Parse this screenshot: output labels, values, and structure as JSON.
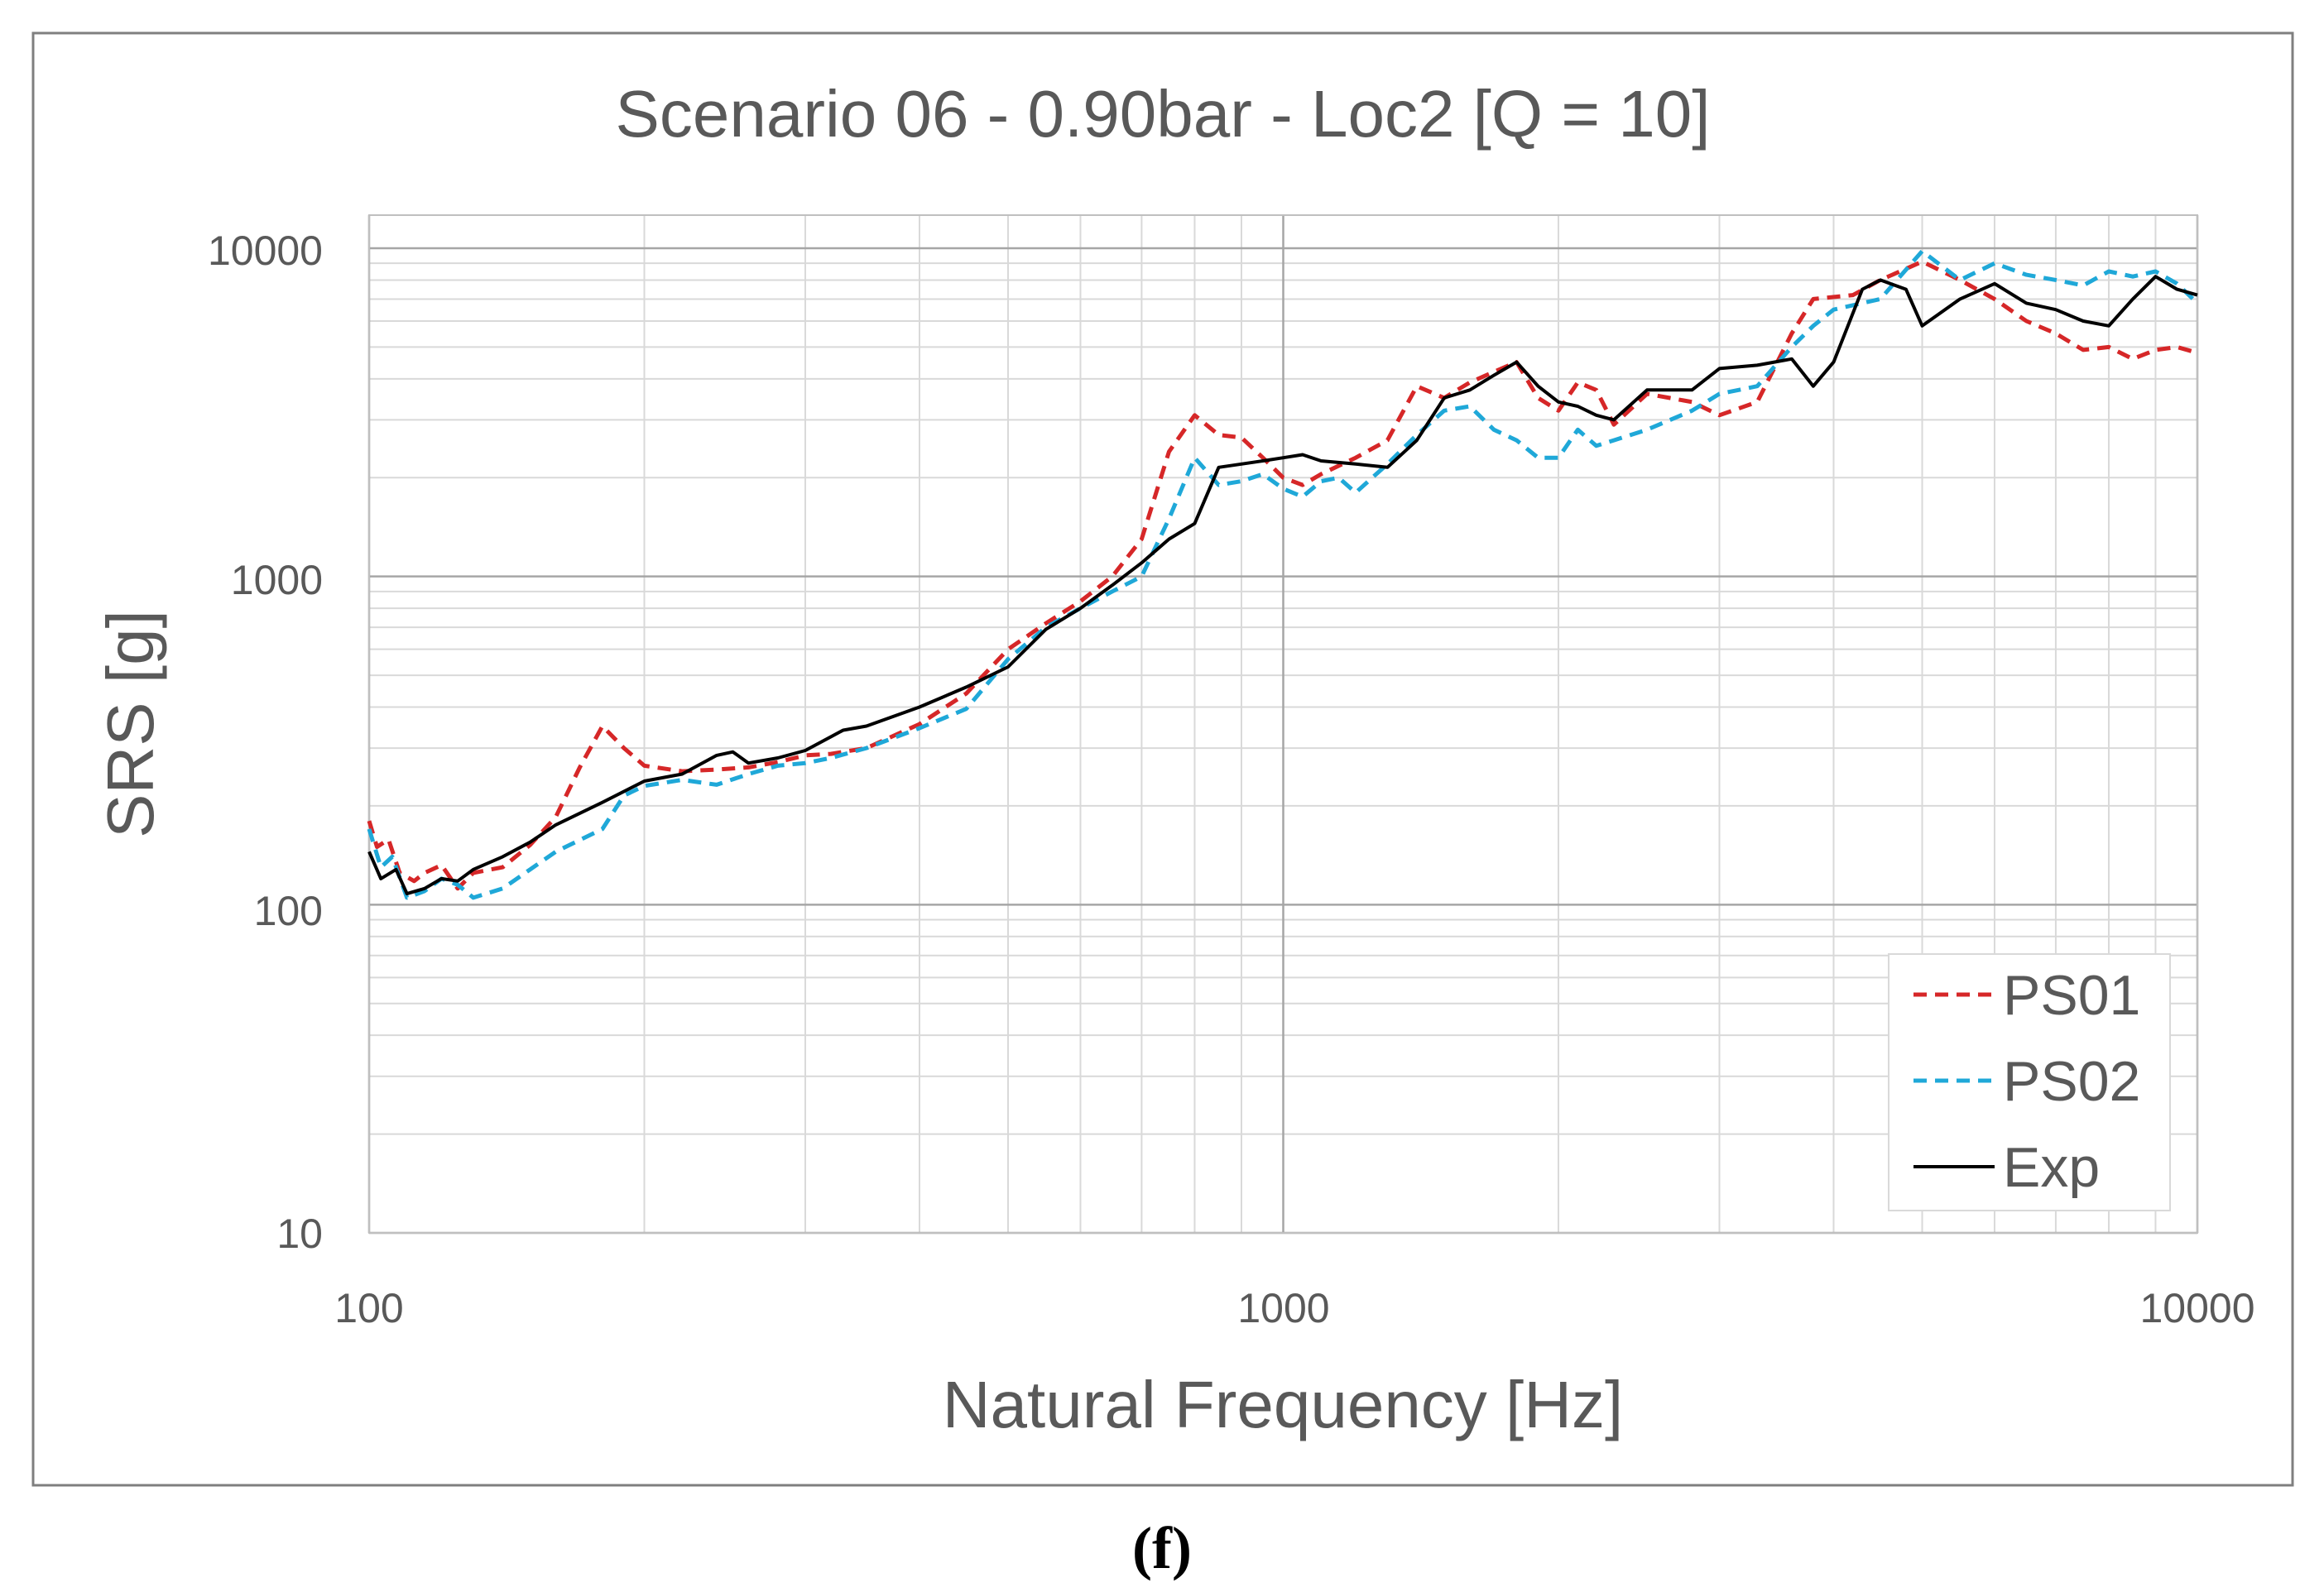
{
  "chart_data": {
    "type": "line",
    "title": "Scenario 06 - 0.90bar - Loc2 [Q = 10]",
    "xlabel": "Natural Frequency [Hz]",
    "ylabel": "SRS [g]",
    "xscale": "log",
    "yscale": "log",
    "xlim": [
      100,
      10000
    ],
    "ylim": [
      10,
      10000
    ],
    "x_ticks": [
      "100",
      "1000",
      "10000"
    ],
    "y_ticks": [
      "10",
      "100",
      "1000",
      "10000"
    ],
    "grid": true,
    "legend_position": "bottom-right",
    "caption": "(f)",
    "series": [
      {
        "name": "PS01",
        "legend_label": "PS01",
        "color": "#d62728",
        "style": "dashed",
        "points": [
          [
            100,
            180
          ],
          [
            102,
            150
          ],
          [
            105,
            158
          ],
          [
            108,
            125
          ],
          [
            112,
            118
          ],
          [
            115,
            125
          ],
          [
            120,
            132
          ],
          [
            125,
            112
          ],
          [
            130,
            125
          ],
          [
            140,
            130
          ],
          [
            150,
            152
          ],
          [
            160,
            185
          ],
          [
            170,
            262
          ],
          [
            180,
            350
          ],
          [
            190,
            300
          ],
          [
            200,
            265
          ],
          [
            220,
            255
          ],
          [
            240,
            258
          ],
          [
            260,
            262
          ],
          [
            280,
            272
          ],
          [
            300,
            285
          ],
          [
            320,
            288
          ],
          [
            350,
            300
          ],
          [
            400,
            355
          ],
          [
            450,
            440
          ],
          [
            500,
            600
          ],
          [
            550,
            720
          ],
          [
            600,
            840
          ],
          [
            650,
            1000
          ],
          [
            700,
            1300
          ],
          [
            750,
            2400
          ],
          [
            800,
            3100
          ],
          [
            850,
            2700
          ],
          [
            900,
            2650
          ],
          [
            950,
            2300
          ],
          [
            1000,
            2000
          ],
          [
            1050,
            1900
          ],
          [
            1100,
            2050
          ],
          [
            1200,
            2300
          ],
          [
            1300,
            2600
          ],
          [
            1400,
            3800
          ],
          [
            1500,
            3500
          ],
          [
            1600,
            3900
          ],
          [
            1700,
            4200
          ],
          [
            1800,
            4500
          ],
          [
            1900,
            3500
          ],
          [
            2000,
            3200
          ],
          [
            2100,
            3900
          ],
          [
            2200,
            3700
          ],
          [
            2300,
            2900
          ],
          [
            2500,
            3600
          ],
          [
            2800,
            3400
          ],
          [
            3000,
            3100
          ],
          [
            3300,
            3400
          ],
          [
            3600,
            5500
          ],
          [
            3800,
            7000
          ],
          [
            4200,
            7200
          ],
          [
            4500,
            8000
          ],
          [
            5000,
            9100
          ],
          [
            5500,
            8000
          ],
          [
            6000,
            7000
          ],
          [
            6500,
            6000
          ],
          [
            7000,
            5500
          ],
          [
            7500,
            4900
          ],
          [
            8000,
            5000
          ],
          [
            8500,
            4600
          ],
          [
            9000,
            4900
          ],
          [
            9500,
            5000
          ],
          [
            10000,
            4800
          ]
        ]
      },
      {
        "name": "PS02",
        "legend_label": "PS02",
        "color": "#1fa8d8",
        "style": "dashed",
        "points": [
          [
            100,
            170
          ],
          [
            103,
            130
          ],
          [
            106,
            140
          ],
          [
            110,
            105
          ],
          [
            115,
            110
          ],
          [
            120,
            120
          ],
          [
            125,
            115
          ],
          [
            130,
            105
          ],
          [
            140,
            112
          ],
          [
            150,
            128
          ],
          [
            160,
            145
          ],
          [
            180,
            170
          ],
          [
            190,
            215
          ],
          [
            200,
            230
          ],
          [
            220,
            240
          ],
          [
            240,
            232
          ],
          [
            260,
            250
          ],
          [
            280,
            265
          ],
          [
            300,
            270
          ],
          [
            320,
            280
          ],
          [
            350,
            300
          ],
          [
            400,
            345
          ],
          [
            450,
            395
          ],
          [
            500,
            560
          ],
          [
            550,
            700
          ],
          [
            600,
            800
          ],
          [
            650,
            900
          ],
          [
            700,
            1000
          ],
          [
            750,
            1500
          ],
          [
            800,
            2300
          ],
          [
            850,
            1900
          ],
          [
            900,
            1950
          ],
          [
            950,
            2050
          ],
          [
            1000,
            1850
          ],
          [
            1050,
            1750
          ],
          [
            1100,
            1950
          ],
          [
            1150,
            2000
          ],
          [
            1200,
            1800
          ],
          [
            1300,
            2200
          ],
          [
            1400,
            2700
          ],
          [
            1500,
            3200
          ],
          [
            1600,
            3300
          ],
          [
            1700,
            2800
          ],
          [
            1800,
            2600
          ],
          [
            1900,
            2300
          ],
          [
            2000,
            2300
          ],
          [
            2100,
            2800
          ],
          [
            2200,
            2500
          ],
          [
            2300,
            2600
          ],
          [
            2500,
            2800
          ],
          [
            2800,
            3200
          ],
          [
            3000,
            3600
          ],
          [
            3300,
            3800
          ],
          [
            3600,
            5000
          ],
          [
            3800,
            5800
          ],
          [
            4000,
            6500
          ],
          [
            4500,
            7000
          ],
          [
            5000,
            9800
          ],
          [
            5500,
            8000
          ],
          [
            6000,
            9000
          ],
          [
            6500,
            8300
          ],
          [
            7000,
            8000
          ],
          [
            7500,
            7700
          ],
          [
            8000,
            8500
          ],
          [
            8500,
            8200
          ],
          [
            9000,
            8500
          ],
          [
            9500,
            7800
          ],
          [
            10000,
            6800
          ]
        ]
      },
      {
        "name": "Exp",
        "legend_label": "Exp",
        "color": "#000000",
        "style": "solid",
        "points": [
          [
            100,
            145
          ],
          [
            103,
            120
          ],
          [
            107,
            128
          ],
          [
            110,
            108
          ],
          [
            115,
            112
          ],
          [
            120,
            120
          ],
          [
            125,
            118
          ],
          [
            130,
            128
          ],
          [
            140,
            140
          ],
          [
            150,
            155
          ],
          [
            160,
            175
          ],
          [
            180,
            205
          ],
          [
            200,
            238
          ],
          [
            220,
            250
          ],
          [
            240,
            285
          ],
          [
            250,
            292
          ],
          [
            260,
            270
          ],
          [
            280,
            280
          ],
          [
            300,
            295
          ],
          [
            330,
            340
          ],
          [
            350,
            350
          ],
          [
            400,
            400
          ],
          [
            450,
            460
          ],
          [
            500,
            530
          ],
          [
            550,
            690
          ],
          [
            600,
            800
          ],
          [
            650,
            940
          ],
          [
            700,
            1100
          ],
          [
            750,
            1300
          ],
          [
            800,
            1450
          ],
          [
            850,
            2150
          ],
          [
            900,
            2200
          ],
          [
            950,
            2250
          ],
          [
            1000,
            2300
          ],
          [
            1050,
            2350
          ],
          [
            1100,
            2250
          ],
          [
            1200,
            2200
          ],
          [
            1300,
            2150
          ],
          [
            1400,
            2600
          ],
          [
            1500,
            3500
          ],
          [
            1600,
            3700
          ],
          [
            1700,
            4100
          ],
          [
            1800,
            4500
          ],
          [
            1900,
            3800
          ],
          [
            2000,
            3400
          ],
          [
            2100,
            3300
          ],
          [
            2200,
            3100
          ],
          [
            2300,
            3000
          ],
          [
            2500,
            3700
          ],
          [
            2800,
            3700
          ],
          [
            3000,
            4300
          ],
          [
            3300,
            4400
          ],
          [
            3600,
            4600
          ],
          [
            3800,
            3800
          ],
          [
            4000,
            4500
          ],
          [
            4300,
            7500
          ],
          [
            4500,
            8000
          ],
          [
            4800,
            7500
          ],
          [
            5000,
            5800
          ],
          [
            5500,
            7000
          ],
          [
            6000,
            7800
          ],
          [
            6500,
            6800
          ],
          [
            7000,
            6500
          ],
          [
            7500,
            6000
          ],
          [
            8000,
            5800
          ],
          [
            8500,
            7000
          ],
          [
            9000,
            8200
          ],
          [
            9500,
            7500
          ],
          [
            10000,
            7200
          ]
        ]
      }
    ]
  }
}
